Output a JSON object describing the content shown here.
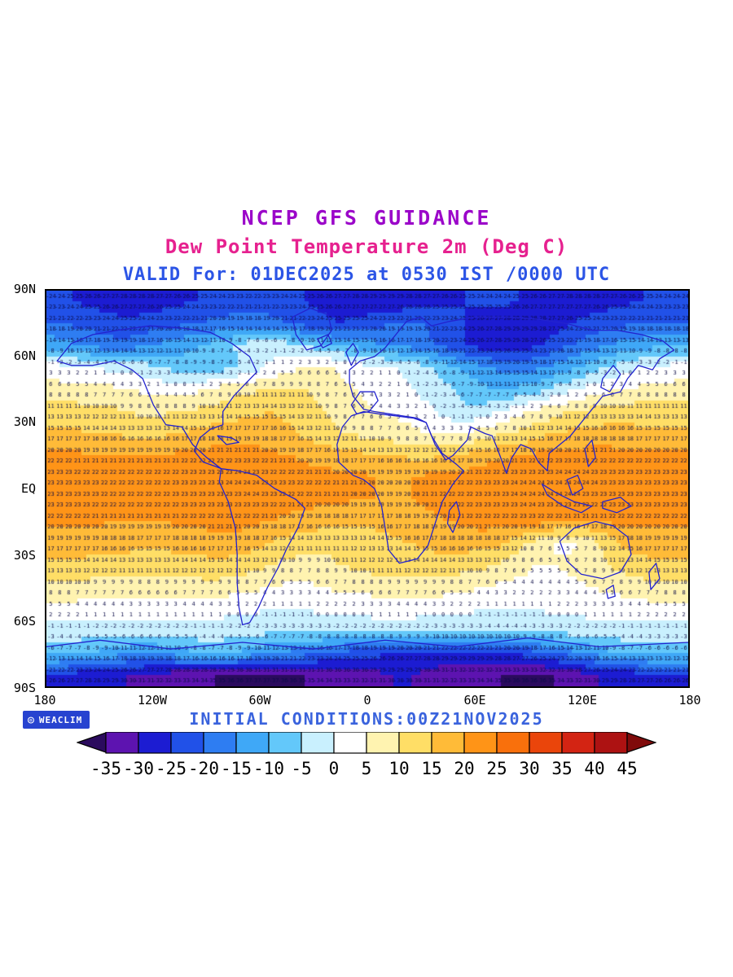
{
  "header": {
    "line1": "NCEP GFS GUIDANCE",
    "line2": "Dew Point Temperature 2m (Deg C)",
    "line3": "VALID For: 01DEC2025 at 0530 IST /0000 UTC"
  },
  "footer": {
    "initial_conditions": "INITIAL CONDITIONS:00Z21NOV2025",
    "logo_label": "WEACLIM"
  },
  "axes": {
    "lat_labels": [
      "90N",
      "60N",
      "30N",
      "EQ",
      "30S",
      "60S",
      "90S"
    ],
    "lon_labels": [
      "180",
      "120W",
      "60W",
      "0",
      "60E",
      "120E",
      "180"
    ]
  },
  "colorbar": {
    "tick_labels": [
      "-35",
      "-30",
      "-25",
      "-20",
      "-15",
      "-10",
      "-5",
      "0",
      "5",
      "10",
      "15",
      "20",
      "25",
      "30",
      "35",
      "40",
      "45"
    ],
    "colors": [
      "#2B0B5E",
      "#5D13B0",
      "#1C1CD2",
      "#2151E8",
      "#2E7DF2",
      "#3FA8F7",
      "#63C8FA",
      "#C9F0FE",
      "#FFFFFF",
      "#FFF3B0",
      "#FFDE66",
      "#FFBB38",
      "#FF9417",
      "#F9700C",
      "#EA450B",
      "#D32413",
      "#AD1212",
      "#800B0B"
    ]
  },
  "colors": {
    "title": "#9B06C9",
    "subtitle": "#E6218F",
    "valid": "#2C55E6",
    "initial": "#3A63DD",
    "numbers": "#0B0B46",
    "coastline": "#2323CE",
    "logo_bg": "#2743D0"
  },
  "chart_data": {
    "type": "heatmap",
    "title": "Dew Point Temperature 2m (Deg C)",
    "model": "NCEP GFS GUIDANCE",
    "valid": "01DEC2025 at 0530 IST /0000 UTC",
    "initial": "00Z21NOV2025",
    "units": "Deg C",
    "lon_range": [
      -180,
      180
    ],
    "lat_range": [
      -90,
      90
    ],
    "levels": [
      -35,
      -30,
      -25,
      -20,
      -15,
      -10,
      -5,
      0,
      5,
      10,
      15,
      20,
      25,
      30,
      35,
      40,
      45
    ],
    "lats": [
      85,
      75,
      65,
      55,
      45,
      35,
      25,
      15,
      5,
      -5,
      -15,
      -25,
      -35,
      -45,
      -55,
      -65,
      -75,
      -85
    ],
    "lons": [
      -175,
      -165,
      -155,
      -145,
      -135,
      -125,
      -115,
      -105,
      -95,
      -85,
      -75,
      -65,
      -55,
      -45,
      -35,
      -25,
      -15,
      -5,
      5,
      15,
      25,
      35,
      45,
      55,
      65,
      75,
      85,
      95,
      105,
      115,
      125,
      135,
      145,
      155,
      165,
      175
    ],
    "values": [
      [
        -24,
        -25,
        -26,
        -27,
        -28,
        -28,
        -27,
        -26,
        -25,
        -24,
        -23,
        -22,
        -23,
        -24,
        -25,
        -26,
        -27,
        -28,
        -29,
        -29,
        -28,
        -27,
        -26,
        -25,
        -24,
        -24,
        -25,
        -26,
        -27,
        -28,
        -28,
        -27,
        -26,
        -25,
        -24,
        -24
      ],
      [
        -20,
        -21,
        -22,
        -23,
        -24,
        -23,
        -22,
        -21,
        -20,
        -19,
        -18,
        -17,
        -18,
        -20,
        -22,
        -24,
        -25,
        -24,
        -22,
        -20,
        -19,
        -21,
        -23,
        -25,
        -27,
        -29,
        -30,
        -29,
        -27,
        -25,
        -23,
        -22,
        -21,
        -20,
        -20,
        -20
      ],
      [
        -12,
        -14,
        -16,
        -18,
        -18,
        -16,
        -14,
        -12,
        -10,
        -8,
        -5,
        -3,
        -2,
        -3,
        -5,
        -8,
        -10,
        -12,
        -14,
        -15,
        -17,
        -19,
        -22,
        -25,
        -27,
        -29,
        -28,
        -26,
        -23,
        -20,
        -17,
        -15,
        -13,
        -12,
        -11,
        -11
      ],
      [
        2,
        1,
        0,
        -1,
        -2,
        -3,
        -5,
        -7,
        -9,
        -8,
        -6,
        -3,
        1,
        3,
        5,
        6,
        4,
        2,
        1,
        0,
        -2,
        -5,
        -8,
        -11,
        -14,
        -16,
        -17,
        -16,
        -14,
        -11,
        -8,
        -5,
        -2,
        0,
        1,
        2
      ],
      [
        7,
        7,
        6,
        6,
        5,
        4,
        3,
        2,
        4,
        6,
        8,
        9,
        10,
        11,
        10,
        8,
        6,
        5,
        3,
        2,
        0,
        -2,
        -4,
        -7,
        -9,
        -10,
        -9,
        -7,
        -4,
        -1,
        2,
        4,
        5,
        6,
        7,
        7
      ],
      [
        12,
        12,
        11,
        11,
        10,
        9,
        9,
        10,
        11,
        12,
        13,
        14,
        15,
        14,
        12,
        10,
        8,
        6,
        5,
        4,
        3,
        1,
        -2,
        -4,
        -3,
        0,
        3,
        6,
        8,
        10,
        11,
        12,
        12,
        13,
        12,
        12
      ],
      [
        16,
        16,
        15,
        15,
        14,
        14,
        14,
        15,
        16,
        17,
        18,
        18,
        17,
        16,
        14,
        12,
        10,
        9,
        8,
        7,
        6,
        5,
        4,
        5,
        7,
        9,
        11,
        13,
        15,
        16,
        17,
        17,
        17,
        16,
        16,
        16
      ],
      [
        21,
        21,
        20,
        20,
        20,
        20,
        20,
        21,
        21,
        22,
        22,
        22,
        21,
        20,
        19,
        18,
        17,
        16,
        15,
        15,
        14,
        14,
        15,
        16,
        18,
        19,
        20,
        21,
        22,
        22,
        22,
        22,
        21,
        21,
        21,
        21
      ],
      [
        23,
        23,
        23,
        22,
        22,
        22,
        22,
        23,
        23,
        23,
        24,
        24,
        23,
        23,
        22,
        22,
        21,
        21,
        20,
        20,
        20,
        21,
        21,
        22,
        23,
        23,
        24,
        24,
        24,
        24,
        24,
        23,
        23,
        23,
        23,
        23
      ],
      [
        23,
        23,
        23,
        22,
        22,
        22,
        22,
        23,
        23,
        23,
        23,
        24,
        23,
        22,
        22,
        21,
        21,
        20,
        20,
        19,
        20,
        21,
        22,
        22,
        23,
        23,
        24,
        24,
        24,
        24,
        23,
        23,
        23,
        23,
        23,
        23
      ],
      [
        21,
        21,
        21,
        20,
        20,
        20,
        20,
        21,
        21,
        22,
        22,
        21,
        20,
        19,
        18,
        17,
        17,
        16,
        16,
        17,
        18,
        19,
        20,
        21,
        22,
        22,
        22,
        22,
        21,
        20,
        20,
        21,
        21,
        21,
        21,
        21
      ],
      [
        18,
        18,
        18,
        17,
        17,
        16,
        16,
        17,
        17,
        18,
        18,
        17,
        15,
        13,
        12,
        11,
        11,
        12,
        13,
        14,
        15,
        16,
        17,
        17,
        17,
        16,
        12,
        8,
        5,
        4,
        7,
        12,
        16,
        18,
        18,
        18
      ],
      [
        14,
        14,
        13,
        13,
        12,
        12,
        12,
        13,
        13,
        14,
        13,
        12,
        10,
        9,
        8,
        9,
        10,
        11,
        12,
        12,
        13,
        13,
        13,
        12,
        11,
        9,
        7,
        5,
        5,
        6,
        8,
        10,
        12,
        13,
        14,
        14
      ],
      [
        9,
        9,
        8,
        8,
        8,
        7,
        7,
        8,
        8,
        8,
        7,
        6,
        5,
        4,
        4,
        5,
        6,
        7,
        7,
        8,
        8,
        8,
        7,
        6,
        5,
        4,
        3,
        3,
        3,
        4,
        5,
        6,
        7,
        8,
        9,
        9
      ],
      [
        3,
        3,
        2,
        2,
        2,
        2,
        2,
        2,
        2,
        2,
        1,
        1,
        0,
        0,
        0,
        1,
        1,
        1,
        2,
        2,
        2,
        2,
        1,
        1,
        0,
        0,
        0,
        0,
        1,
        1,
        2,
        2,
        2,
        3,
        3,
        3
      ],
      [
        -2,
        -2,
        -3,
        -3,
        -3,
        -3,
        -3,
        -3,
        -2,
        -2,
        -3,
        -3,
        -4,
        -4,
        -4,
        -4,
        -3,
        -3,
        -3,
        -3,
        -3,
        -4,
        -4,
        -4,
        -5,
        -5,
        -5,
        -4,
        -4,
        -3,
        -3,
        -3,
        -2,
        -2,
        -2,
        -2
      ],
      [
        -8,
        -9,
        -10,
        -12,
        -14,
        -15,
        -14,
        -12,
        -10,
        -9,
        -10,
        -12,
        -14,
        -16,
        -18,
        -20,
        -22,
        -23,
        -24,
        -25,
        -26,
        -27,
        -28,
        -28,
        -27,
        -26,
        -24,
        -22,
        -20,
        -17,
        -14,
        -11,
        -9,
        -8,
        -8,
        -8
      ],
      [
        -26,
        -27,
        -28,
        -29,
        -30,
        -31,
        -32,
        -33,
        -34,
        -35,
        -36,
        -37,
        -37,
        -36,
        -35,
        -34,
        -33,
        -32,
        -31,
        -30,
        -30,
        -31,
        -32,
        -33,
        -34,
        -35,
        -36,
        -36,
        -35,
        -33,
        -31,
        -29,
        -28,
        -27,
        -26,
        -26
      ]
    ]
  }
}
